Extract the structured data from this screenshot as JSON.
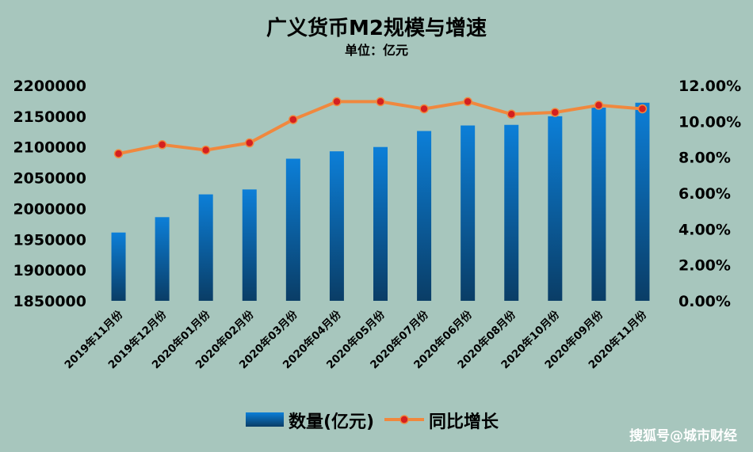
{
  "chart_data": {
    "type": "bar",
    "title": "广义货币M2规模与增速",
    "subtitle": "单位：亿元",
    "categories": [
      "2019年11月份",
      "2019年12月份",
      "2020年01月份",
      "2020年02月份",
      "2020年03月份",
      "2020年04月份",
      "2020年05月份",
      "2020年07月份",
      "2020年06月份",
      "2020年08月份",
      "2020年10月份",
      "2020年09月份",
      "2020年11月份"
    ],
    "series": [
      {
        "name": "数量(亿元)",
        "type": "bar",
        "axis": "left",
        "values": [
          1961000,
          1986000,
          2023000,
          2031000,
          2081000,
          2093000,
          2100000,
          2126000,
          2135000,
          2136000,
          2150000,
          2164000,
          2172000
        ]
      },
      {
        "name": "同比增长",
        "type": "line",
        "axis": "right",
        "values": [
          8.2,
          8.7,
          8.4,
          8.8,
          10.1,
          11.1,
          11.1,
          10.7,
          11.1,
          10.4,
          10.5,
          10.9,
          10.7
        ]
      }
    ],
    "y_left": {
      "min": 1850000,
      "max": 2200000,
      "ticks": [
        "1850000",
        "1900000",
        "1950000",
        "2000000",
        "2050000",
        "2100000",
        "2150000",
        "2200000"
      ]
    },
    "y_right": {
      "min": 0,
      "max": 12,
      "ticks": [
        "0.00%",
        "2.00%",
        "4.00%",
        "6.00%",
        "8.00%",
        "10.00%",
        "12.00%"
      ]
    },
    "grid": false,
    "legend": "bottom-center",
    "colors": {
      "bar_top": "#0c7fd8",
      "bar_bottom": "#0a3d66",
      "line": "#f0883e",
      "marker": "#d42020"
    }
  },
  "watermark": "搜狐号@城市财经"
}
